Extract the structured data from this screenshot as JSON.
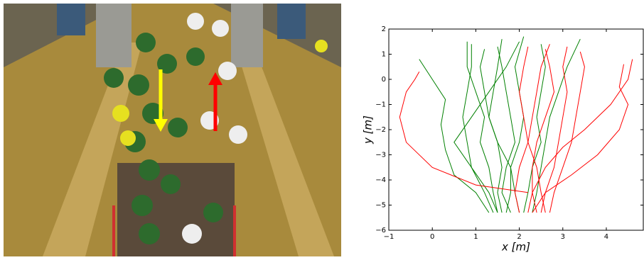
{
  "chart_data": {
    "type": "line",
    "xlabel": "x  [m]",
    "ylabel": "y  [m]",
    "xlim": [
      -1,
      4.85
    ],
    "ylim": [
      -6,
      2
    ],
    "xticks": [
      {
        "value": -1,
        "label": "−1"
      },
      0,
      1,
      2,
      3,
      4
    ],
    "yticks": [
      {
        "value": -6,
        "label": "−6"
      },
      {
        "value": -5,
        "label": "−5"
      },
      {
        "value": -4,
        "label": "−4"
      },
      {
        "value": -3,
        "label": "−3"
      },
      {
        "value": -2,
        "label": "−2"
      },
      {
        "value": -1,
        "label": "−1"
      },
      0,
      1,
      2
    ],
    "series": [
      {
        "color": "#008000",
        "x": [
          1.4,
          1.2,
          0.9,
          0.8,
          0.7,
          0.8,
          0.9,
          0.9
        ],
        "y": [
          -5.3,
          -4.5,
          -3.5,
          -2.5,
          -1.5,
          -0.5,
          0.5,
          1.4
        ]
      },
      {
        "color": "#008000",
        "x": [
          1.5,
          1.4,
          1.3,
          1.1,
          1.2,
          1.0,
          0.8,
          0.8
        ],
        "y": [
          -5.3,
          -4.5,
          -3.5,
          -2.5,
          -1.5,
          -0.5,
          0.5,
          1.5
        ]
      },
      {
        "color": "#008000",
        "x": [
          1.6,
          1.5,
          1.6,
          1.5,
          1.3,
          1.4,
          1.5,
          1.6
        ],
        "y": [
          -5.3,
          -4.5,
          -3.5,
          -2.5,
          -1.5,
          -0.5,
          0.5,
          1.6
        ]
      },
      {
        "color": "#008000",
        "x": [
          1.8,
          1.6,
          1.7,
          1.9,
          1.8,
          1.7,
          1.6,
          1.5
        ],
        "y": [
          -5.3,
          -4.5,
          -3.5,
          -2.5,
          -1.5,
          -0.5,
          0.5,
          1.3
        ]
      },
      {
        "color": "#008000",
        "x": [
          2.0,
          1.9,
          1.8,
          2.0,
          2.1,
          2.0,
          1.9,
          2.1
        ],
        "y": [
          -5.3,
          -4.5,
          -3.5,
          -2.5,
          -1.5,
          -0.5,
          0.5,
          1.7
        ]
      },
      {
        "color": "#008000",
        "x": [
          1.3,
          1.0,
          0.5,
          0.3,
          0.2,
          0.3,
          0.0,
          -0.3
        ],
        "y": [
          -5.3,
          -4.5,
          -3.8,
          -2.8,
          -1.8,
          -0.8,
          0.0,
          0.8
        ]
      },
      {
        "color": "#008000",
        "x": [
          2.3,
          2.4,
          2.5,
          2.6,
          2.7,
          2.9,
          3.1,
          3.4
        ],
        "y": [
          -5.3,
          -4.5,
          -3.5,
          -2.5,
          -1.5,
          -0.5,
          0.5,
          1.6
        ]
      },
      {
        "color": "#008000",
        "x": [
          1.5,
          1.3,
          0.9,
          0.5,
          0.9,
          1.3,
          1.7,
          2.0
        ],
        "y": [
          -5.3,
          -4.5,
          -3.5,
          -2.5,
          -1.5,
          -0.5,
          0.5,
          1.5
        ]
      },
      {
        "color": "#008000",
        "x": [
          1.7,
          1.8,
          1.8,
          1.5,
          1.3,
          1.2,
          1.1,
          1.2
        ],
        "y": [
          -5.3,
          -4.5,
          -3.5,
          -2.5,
          -1.5,
          -0.5,
          0.5,
          1.2
        ]
      },
      {
        "color": "#008000",
        "x": [
          2.1,
          2.2,
          2.3,
          2.5,
          2.4,
          2.5,
          2.6,
          2.5
        ],
        "y": [
          -5.3,
          -4.5,
          -3.5,
          -2.5,
          -1.5,
          -0.5,
          0.5,
          1.4
        ]
      },
      {
        "color": "#ff0000",
        "x": [
          2.6,
          2.5,
          2.4,
          2.2,
          2.1,
          2.0,
          2.1,
          2.2
        ],
        "y": [
          -5.3,
          -4.5,
          -3.5,
          -2.5,
          -1.5,
          -0.5,
          0.5,
          1.3
        ]
      },
      {
        "color": "#ff0000",
        "x": [
          2.5,
          2.6,
          2.8,
          2.9,
          3.0,
          3.1,
          3.0,
          3.1
        ],
        "y": [
          -5.3,
          -4.5,
          -3.5,
          -2.5,
          -1.5,
          -0.5,
          0.5,
          1.3
        ]
      },
      {
        "color": "#ff0000",
        "x": [
          2.4,
          2.3,
          2.3,
          2.4,
          2.6,
          2.8,
          2.7,
          2.6
        ],
        "y": [
          -5.3,
          -4.5,
          -3.5,
          -2.5,
          -1.5,
          -0.5,
          0.5,
          1.2
        ]
      },
      {
        "color": "#ff0000",
        "x": [
          2.2,
          2.3,
          2.6,
          3.0,
          3.5,
          4.1,
          4.5,
          4.6
        ],
        "y": [
          -5.3,
          -4.5,
          -3.5,
          -2.7,
          -2.0,
          -1.0,
          0.0,
          0.8
        ]
      },
      {
        "color": "#ff0000",
        "x": [
          2.0,
          1.9,
          2.0,
          2.2,
          2.3,
          2.4,
          2.5,
          2.7
        ],
        "y": [
          -5.3,
          -4.5,
          -3.5,
          -2.5,
          -1.5,
          -0.5,
          0.5,
          1.4
        ]
      },
      {
        "color": "#ff0000",
        "x": [
          2.2,
          1.0,
          0.0,
          -0.6,
          -0.75,
          -0.6,
          -0.4,
          -0.3
        ],
        "y": [
          -4.5,
          -4.2,
          -3.5,
          -2.5,
          -1.5,
          -0.5,
          0.0,
          0.3
        ]
      },
      {
        "color": "#ff0000",
        "x": [
          2.7,
          2.8,
          3.0,
          3.2,
          3.3,
          3.4,
          3.5,
          3.4
        ],
        "y": [
          -5.3,
          -4.5,
          -3.5,
          -2.5,
          -1.5,
          -0.5,
          0.5,
          1.1
        ]
      },
      {
        "color": "#ff0000",
        "x": [
          2.3,
          2.6,
          3.2,
          3.8,
          4.3,
          4.5,
          4.3,
          4.4
        ],
        "y": [
          -5.3,
          -4.5,
          -3.8,
          -3.0,
          -2.0,
          -1.0,
          -0.3,
          0.6
        ]
      }
    ]
  }
}
